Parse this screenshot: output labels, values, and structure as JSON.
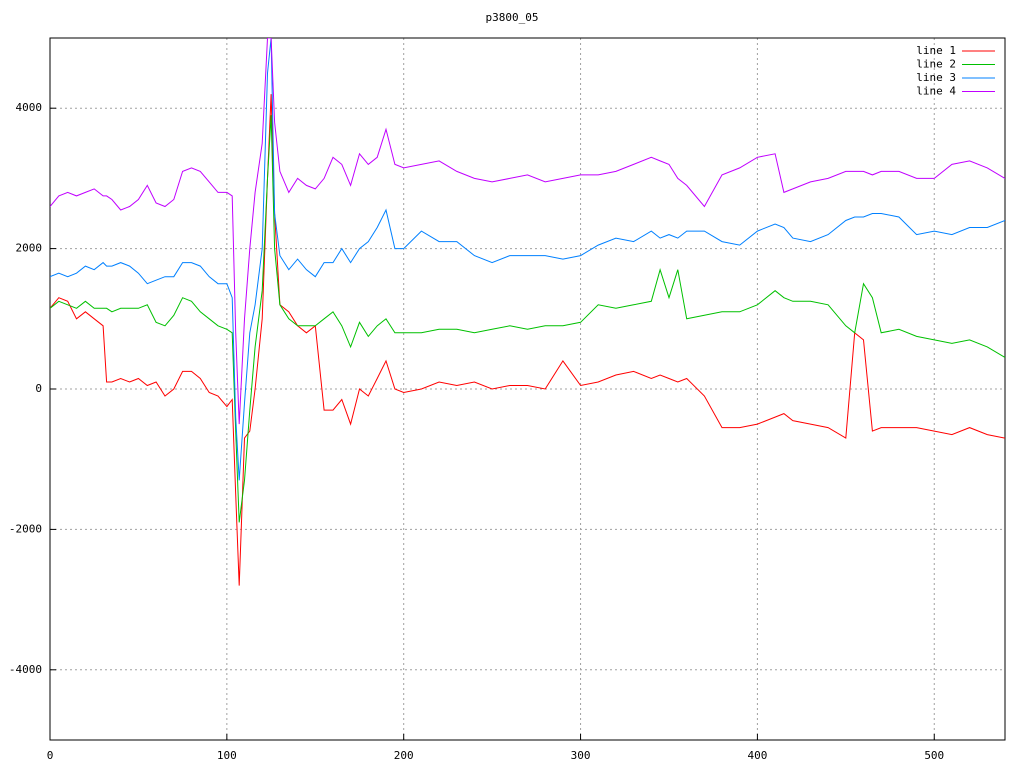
{
  "chart_data": {
    "type": "line",
    "title": "p3800_05",
    "x": [
      0,
      5,
      10,
      15,
      20,
      25,
      30,
      32,
      35,
      40,
      45,
      50,
      55,
      60,
      65,
      70,
      75,
      80,
      85,
      90,
      95,
      100,
      103,
      105,
      107,
      110,
      113,
      116,
      120,
      123,
      125,
      127,
      130,
      135,
      140,
      145,
      150,
      155,
      160,
      165,
      170,
      175,
      180,
      185,
      190,
      195,
      200,
      210,
      220,
      230,
      240,
      250,
      260,
      270,
      280,
      290,
      300,
      310,
      320,
      330,
      340,
      345,
      350,
      355,
      360,
      370,
      380,
      390,
      400,
      410,
      415,
      420,
      430,
      440,
      450,
      455,
      460,
      465,
      470,
      480,
      490,
      500,
      510,
      520,
      530,
      540
    ],
    "series": [
      {
        "name": "line 1",
        "color": "#ff0000",
        "values": [
          1150,
          1300,
          1250,
          1000,
          1100,
          1000,
          900,
          100,
          100,
          150,
          100,
          150,
          50,
          100,
          -100,
          0,
          250,
          250,
          150,
          -50,
          -100,
          -250,
          -150,
          -1500,
          -2800,
          -700,
          -600,
          0,
          1000,
          3000,
          4200,
          2500,
          1200,
          1100,
          900,
          800,
          900,
          -300,
          -300,
          -150,
          -500,
          0,
          -100,
          150,
          400,
          0,
          -50,
          0,
          100,
          50,
          100,
          0,
          50,
          50,
          0,
          400,
          50,
          100,
          200,
          250,
          150,
          200,
          150,
          100,
          150,
          -100,
          -550,
          -550,
          -500,
          -400,
          -350,
          -450,
          -500,
          -550,
          -700,
          800,
          700,
          -600,
          -550,
          -550,
          -550,
          -600,
          -650,
          -550,
          -650,
          -700
        ]
      },
      {
        "name": "line 2",
        "color": "#00c000",
        "values": [
          1150,
          1250,
          1200,
          1150,
          1250,
          1150,
          1150,
          1150,
          1100,
          1150,
          1150,
          1150,
          1200,
          950,
          900,
          1050,
          1300,
          1250,
          1100,
          1000,
          900,
          850,
          800,
          -600,
          -1900,
          -1300,
          -300,
          600,
          1400,
          3000,
          3900,
          2000,
          1200,
          1000,
          900,
          900,
          900,
          1000,
          1100,
          900,
          600,
          950,
          750,
          900,
          1000,
          800,
          800,
          800,
          850,
          850,
          800,
          850,
          900,
          850,
          900,
          900,
          950,
          1200,
          1150,
          1200,
          1250,
          1700,
          1300,
          1700,
          1000,
          1050,
          1100,
          1100,
          1200,
          1400,
          1300,
          1250,
          1250,
          1200,
          900,
          800,
          1500,
          1300,
          800,
          850,
          750,
          700,
          650,
          700,
          600,
          450
        ]
      },
      {
        "name": "line 3",
        "color": "#0080ff",
        "values": [
          1600,
          1650,
          1600,
          1650,
          1750,
          1700,
          1800,
          1750,
          1750,
          1800,
          1750,
          1650,
          1500,
          1550,
          1600,
          1600,
          1800,
          1800,
          1750,
          1600,
          1500,
          1500,
          1300,
          -400,
          -1300,
          -200,
          800,
          1200,
          2000,
          4500,
          5000,
          2500,
          1900,
          1700,
          1850,
          1700,
          1600,
          1800,
          1800,
          2000,
          1800,
          2000,
          2100,
          2300,
          2550,
          2000,
          2000,
          2250,
          2100,
          2100,
          1900,
          1800,
          1900,
          1900,
          1900,
          1850,
          1900,
          2050,
          2150,
          2100,
          2250,
          2150,
          2200,
          2150,
          2250,
          2250,
          2100,
          2050,
          2250,
          2350,
          2300,
          2150,
          2100,
          2200,
          2400,
          2450,
          2450,
          2500,
          2500,
          2450,
          2200,
          2250,
          2200,
          2300,
          2300,
          2400
        ]
      },
      {
        "name": "line 4",
        "color": "#c000ff",
        "values": [
          2600,
          2750,
          2800,
          2750,
          2800,
          2850,
          2750,
          2750,
          2700,
          2550,
          2600,
          2700,
          2900,
          2650,
          2600,
          2700,
          3100,
          3150,
          3100,
          2950,
          2800,
          2800,
          2750,
          800,
          -500,
          1000,
          2000,
          2800,
          3500,
          5000,
          5000,
          3800,
          3100,
          2800,
          3000,
          2900,
          2850,
          3000,
          3300,
          3200,
          2900,
          3350,
          3200,
          3300,
          3700,
          3200,
          3150,
          3200,
          3250,
          3100,
          3000,
          2950,
          3000,
          3050,
          2950,
          3000,
          3050,
          3050,
          3100,
          3200,
          3300,
          3250,
          3200,
          3000,
          2900,
          2600,
          3050,
          3150,
          3300,
          3350,
          2800,
          2850,
          2950,
          3000,
          3100,
          3100,
          3100,
          3050,
          3100,
          3100,
          3000,
          3000,
          3200,
          3250,
          3150,
          3000
        ]
      }
    ],
    "xlim": [
      0,
      540
    ],
    "xticks": [
      0,
      100,
      200,
      300,
      400,
      500
    ],
    "ylim": [
      -5000,
      5000
    ],
    "yticks": [
      -4000,
      -2000,
      0,
      2000,
      4000
    ],
    "grid": true,
    "legend": "top-right"
  }
}
